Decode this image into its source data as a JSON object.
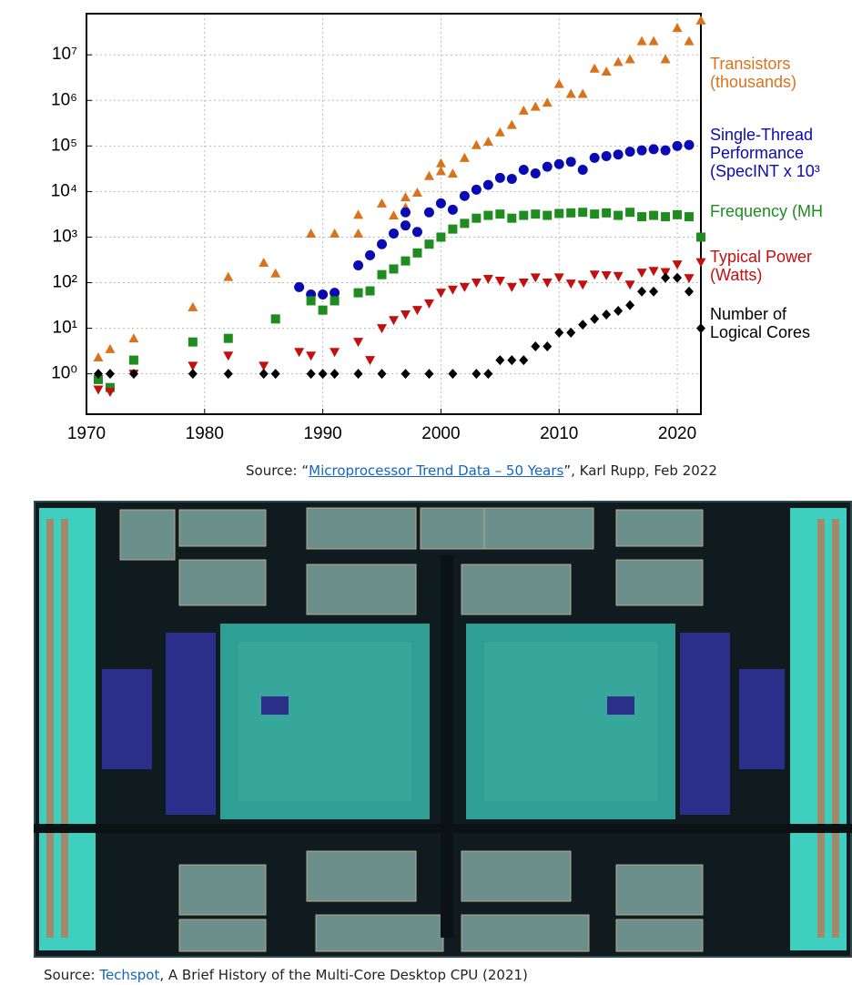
{
  "chart_data": {
    "type": "scatter",
    "log_y": true,
    "grid": true,
    "xlim": [
      1970,
      2022
    ],
    "xticks": [
      1970,
      1980,
      1990,
      2000,
      2010,
      2020
    ],
    "ylim": [
      0.13,
      80000000
    ],
    "yticks": [
      {
        "value": 1,
        "label": "10⁰"
      },
      {
        "value": 10,
        "label": "10¹"
      },
      {
        "value": 100,
        "label": "10²"
      },
      {
        "value": 1000,
        "label": "10³"
      },
      {
        "value": 10000,
        "label": "10⁴"
      },
      {
        "value": 100000,
        "label": "10⁵"
      },
      {
        "value": 1000000,
        "label": "10⁶"
      },
      {
        "value": 10000000,
        "label": "10⁷"
      }
    ],
    "series": [
      {
        "name": "Transistors\n(thousands)",
        "color": "#d9731b",
        "marker": "triangle-up",
        "x": [
          1971,
          1972,
          1974,
          1979,
          1982,
          1985,
          1986,
          1989,
          1991,
          1993,
          1993,
          1995,
          1996,
          1997,
          1997,
          1998,
          1999,
          2000,
          2000,
          2001,
          2002,
          2003,
          2004,
          2005,
          2006,
          2007,
          2008,
          2009,
          2010,
          2011,
          2012,
          2013,
          2014,
          2015,
          2016,
          2017,
          2018,
          2019,
          2020,
          2021,
          2022
        ],
        "values": [
          2.3,
          3.5,
          6,
          29,
          134,
          275,
          160,
          1200,
          1200,
          3100,
          1200,
          5500,
          3000,
          7500,
          4500,
          9500,
          22000,
          28000,
          42000,
          25000,
          55000,
          105000,
          125000,
          200000,
          290000,
          600000,
          730000,
          900000,
          2300000,
          1400000,
          1400000,
          5000000,
          4300000,
          7000000,
          8000000,
          20000000,
          20000000,
          8000000,
          39000000,
          20000000,
          57000000
        ]
      },
      {
        "name": "Single-Thread\nPerformance\n(SpecINT x 10³",
        "color": "#0a0ab4",
        "marker": "circle",
        "x": [
          1988,
          1989,
          1990,
          1991,
          1993,
          1994,
          1995,
          1996,
          1997,
          1997,
          1998,
          1999,
          2000,
          2001,
          2002,
          2003,
          2004,
          2005,
          2006,
          2007,
          2008,
          2009,
          2010,
          2011,
          2012,
          2013,
          2014,
          2015,
          2016,
          2017,
          2018,
          2019,
          2020,
          2021
        ],
        "values": [
          80,
          55,
          55,
          60,
          240,
          400,
          700,
          1200,
          1800,
          3500,
          1300,
          3500,
          5500,
          4000,
          8000,
          11000,
          14000,
          20000,
          19000,
          30000,
          25000,
          35000,
          40000,
          45000,
          30000,
          55000,
          60000,
          65000,
          75000,
          80000,
          85000,
          80000,
          100000,
          105000
        ]
      },
      {
        "name": "Frequency (MH",
        "color": "#1e8c1e",
        "marker": "square",
        "x": [
          1971,
          1972,
          1974,
          1979,
          1982,
          1986,
          1989,
          1990,
          1991,
          1993,
          1994,
          1995,
          1996,
          1997,
          1998,
          1999,
          2000,
          2001,
          2002,
          2003,
          2004,
          2005,
          2006,
          2007,
          2008,
          2009,
          2010,
          2011,
          2012,
          2013,
          2014,
          2015,
          2016,
          2017,
          2018,
          2019,
          2020,
          2021,
          2022
        ],
        "values": [
          0.75,
          0.5,
          2,
          5,
          6,
          16,
          40,
          25,
          40,
          60,
          66,
          150,
          200,
          300,
          450,
          700,
          1000,
          1500,
          2000,
          2600,
          3000,
          3200,
          2600,
          3000,
          3200,
          3000,
          3300,
          3400,
          3500,
          3200,
          3400,
          3000,
          3500,
          2800,
          3000,
          2800,
          3100,
          2800,
          1000
        ]
      },
      {
        "name": "Typical Power\n(Watts)",
        "color": "#c40f0f",
        "marker": "triangle-down",
        "x": [
          1971,
          1972,
          1974,
          1979,
          1982,
          1985,
          1988,
          1989,
          1991,
          1993,
          1994,
          1995,
          1996,
          1997,
          1998,
          1999,
          2000,
          2001,
          2002,
          2003,
          2004,
          2005,
          2006,
          2007,
          2008,
          2009,
          2010,
          2011,
          2012,
          2013,
          2014,
          2015,
          2016,
          2017,
          2018,
          2019,
          2020,
          2021,
          2022
        ],
        "values": [
          0.45,
          0.4,
          1,
          1.5,
          2.5,
          1.5,
          3,
          2.5,
          3,
          5,
          2,
          10,
          15,
          20,
          25,
          35,
          60,
          70,
          80,
          100,
          120,
          110,
          80,
          100,
          130,
          100,
          130,
          95,
          90,
          150,
          145,
          140,
          90,
          165,
          180,
          170,
          250,
          125,
          280
        ]
      },
      {
        "name": "Number of\nLogical Cores",
        "color": "#000000",
        "marker": "diamond",
        "x": [
          1971,
          1972,
          1974,
          1979,
          1982,
          1985,
          1986,
          1989,
          1990,
          1991,
          1993,
          1995,
          1997,
          1999,
          2001,
          2003,
          2004,
          2005,
          2006,
          2007,
          2008,
          2009,
          2010,
          2011,
          2012,
          2013,
          2014,
          2015,
          2016,
          2017,
          2018,
          2019,
          2020,
          2021,
          2022
        ],
        "values": [
          1,
          1,
          1,
          1,
          1,
          1,
          1,
          1,
          1,
          1,
          1,
          1,
          1,
          1,
          1,
          1,
          1,
          2,
          2,
          2,
          4,
          4,
          8,
          8,
          12,
          16,
          20,
          24,
          32,
          64,
          64,
          128,
          128,
          64,
          10
        ]
      }
    ]
  },
  "captions": [
    {
      "prefix": "Source: “",
      "link": "Microprocessor Trend Data – 50 Years",
      "suffix": "”, Karl Rupp, Feb 2022"
    },
    {
      "prefix": "Source: ",
      "link": "Techspot",
      "suffix": ", A Brief History of the Multi-Core Desktop CPU (2021)"
    }
  ]
}
